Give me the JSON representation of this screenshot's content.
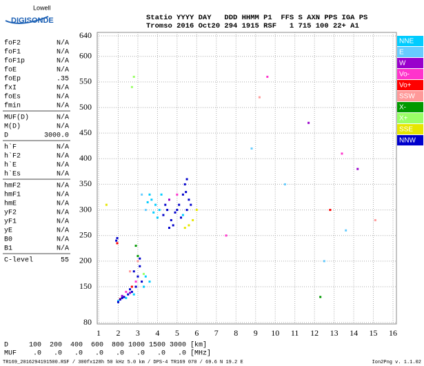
{
  "logo": {
    "top": "Lowell",
    "name": "DIGISONDE"
  },
  "header": {
    "labels": "Statio YYYY DAY   DDD HHMM P1  FFS S AXN PPS IGA PS",
    "values": "Tromso 2016 Oct20 294 1915 RSF   1 715 100 22+ A1"
  },
  "parameters": [
    [
      {
        "name": "foF2",
        "value": "N/A"
      },
      {
        "name": "foF1",
        "value": "N/A"
      },
      {
        "name": "foF1p",
        "value": "N/A"
      },
      {
        "name": "foE",
        "value": "N/A"
      },
      {
        "name": "foEp",
        "value": ".35"
      },
      {
        "name": "fxI",
        "value": "N/A"
      },
      {
        "name": "foEs",
        "value": "N/A"
      },
      {
        "name": "fmin",
        "value": "N/A"
      }
    ],
    [
      {
        "name": "MUF(D)",
        "value": "N/A"
      },
      {
        "name": "M(D)",
        "value": "N/A"
      },
      {
        "name": "D",
        "value": "3000.0"
      }
    ],
    [
      {
        "name": "h`F",
        "value": "N/A"
      },
      {
        "name": "h`F2",
        "value": "N/A"
      },
      {
        "name": "h`E",
        "value": "N/A"
      },
      {
        "name": "h`Es",
        "value": "N/A"
      }
    ],
    [
      {
        "name": "hmF2",
        "value": "N/A"
      },
      {
        "name": "hmF1",
        "value": "N/A"
      },
      {
        "name": "hmE",
        "value": "N/A"
      },
      {
        "name": "yF2",
        "value": "N/A"
      },
      {
        "name": "yF1",
        "value": "N/A"
      },
      {
        "name": "yE",
        "value": "N/A"
      },
      {
        "name": "B0",
        "value": "N/A"
      },
      {
        "name": "B1",
        "value": "N/A"
      }
    ],
    [
      {
        "name": "C-level",
        "value": "55"
      }
    ]
  ],
  "bottom": {
    "d_row": "D     100  200  400  600  800 1000 1500 3000 [km]",
    "muf_row": "MUF    .0   .0   .0   .0   .0   .0   .0   .0 [MHz]",
    "file": "TR169_2016294191500.RSF / 300fx128h 50 kHz 5.0 km / DPS-4 TR169 070 / 69.6 N 19.2 E",
    "version": "Ion2Png v. 1.1.02"
  },
  "chart_data": {
    "type": "scatter",
    "xlim": [
      1,
      16
    ],
    "ylim": [
      80,
      640
    ],
    "xticks": [
      1,
      2,
      3,
      4,
      5,
      6,
      7,
      8,
      9,
      10,
      11,
      12,
      13,
      14,
      15,
      16
    ],
    "yticks": [
      80,
      150,
      200,
      250,
      300,
      350,
      400,
      450,
      500,
      550,
      600,
      640
    ],
    "grid": true,
    "legend": "top-right",
    "series": [
      {
        "name": "NNE",
        "color": "#00ccff",
        "x": [
          3.7,
          3.9,
          4.1,
          4.2,
          3.5,
          3.8,
          4.0,
          3.6,
          2.0,
          2.4,
          2.8,
          3.4,
          3.6,
          5.3,
          3.3
        ],
        "values": [
          320,
          310,
          300,
          330,
          315,
          295,
          285,
          330,
          122,
          128,
          135,
          170,
          160,
          290,
          150
        ]
      },
      {
        "name": "E",
        "color": "#66ccff",
        "x": [
          3.2,
          3.4,
          12.5,
          8.8,
          10.5,
          13.6
        ],
        "values": [
          330,
          300,
          200,
          420,
          350,
          260
        ]
      },
      {
        "name": "W",
        "color": "#9900cc",
        "x": [
          2.2,
          2.6,
          4.6,
          11.7,
          14.2
        ],
        "values": [
          132,
          138,
          320,
          470,
          380
        ]
      },
      {
        "name": "Vo-",
        "color": "#ff33cc",
        "x": [
          2.4,
          2.9,
          5.0,
          9.6,
          13.4,
          7.5
        ],
        "values": [
          140,
          160,
          330,
          560,
          410,
          250
        ]
      },
      {
        "name": "Vo+",
        "color": "#ff0000",
        "x": [
          2.1,
          1.95,
          2.7,
          12.8
        ],
        "values": [
          126,
          235,
          150,
          300
        ]
      },
      {
        "name": "SSW",
        "color": "#ff9999",
        "x": [
          2.6,
          3.0,
          9.2,
          15.1
        ],
        "values": [
          180,
          200,
          520,
          280
        ]
      },
      {
        "name": "X-",
        "color": "#009900",
        "x": [
          3.0,
          2.9,
          12.3
        ],
        "values": [
          210,
          230,
          130
        ]
      },
      {
        "name": "X+",
        "color": "#99ff66",
        "x": [
          2.7,
          2.8,
          3.3
        ],
        "values": [
          540,
          560,
          175
        ]
      },
      {
        "name": "SSE",
        "color": "#e6e600",
        "x": [
          5.6,
          5.8,
          6.0,
          1.4,
          5.4
        ],
        "values": [
          270,
          280,
          300,
          310,
          265
        ]
      },
      {
        "name": "NNW",
        "color": "#0000cc",
        "x": [
          2.1,
          2.3,
          2.5,
          2.7,
          2.9,
          3.0,
          3.2,
          2.0,
          2.2,
          2.6,
          2.8,
          3.1,
          4.3,
          4.5,
          4.7,
          4.9,
          5.1,
          5.3,
          5.4,
          5.5,
          5.6,
          5.2,
          4.8,
          4.6,
          5.0,
          5.7,
          4.4,
          3.1,
          1.9,
          1.95,
          5.5,
          5.45
        ],
        "values": [
          125,
          130,
          135,
          140,
          150,
          170,
          160,
          120,
          128,
          145,
          180,
          190,
          290,
          300,
          280,
          295,
          310,
          330,
          350,
          300,
          320,
          285,
          270,
          265,
          300,
          310,
          310,
          205,
          240,
          245,
          360,
          335
        ]
      }
    ]
  }
}
